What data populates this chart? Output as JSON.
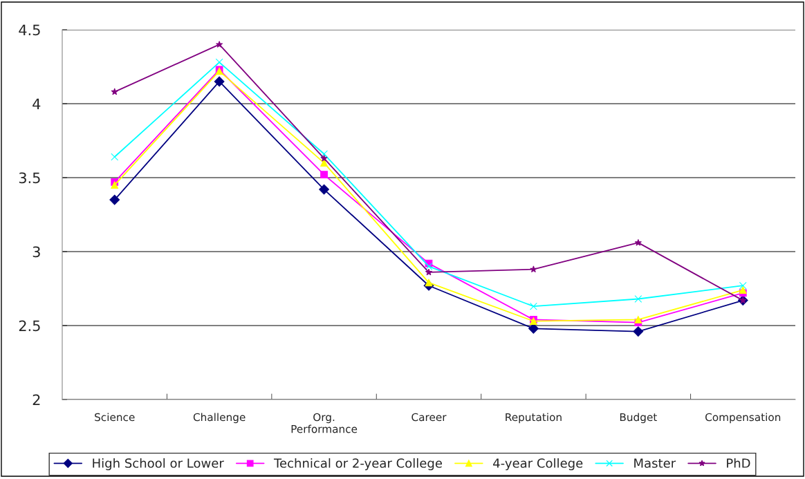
{
  "chart_data": {
    "type": "line",
    "categories": [
      "Science",
      "Challenge",
      "Org.\nPerformance",
      "Career",
      "Reputation",
      "Budget",
      "Compensation"
    ],
    "series": [
      {
        "name": "High School or Lower",
        "color": "#000080",
        "marker": "diamond",
        "values": [
          3.35,
          4.15,
          3.42,
          2.77,
          2.48,
          2.46,
          2.67
        ]
      },
      {
        "name": "Technical or 2-year College",
        "color": "#ff00ff",
        "marker": "square",
        "values": [
          3.47,
          4.23,
          3.52,
          2.92,
          2.54,
          2.52,
          2.72
        ]
      },
      {
        "name": "4-year College",
        "color": "#ffff00",
        "marker": "triangle",
        "values": [
          3.45,
          4.22,
          3.6,
          2.79,
          2.53,
          2.54,
          2.74
        ]
      },
      {
        "name": "Master",
        "color": "#00ffff",
        "marker": "cross",
        "values": [
          3.64,
          4.28,
          3.66,
          2.9,
          2.63,
          2.68,
          2.77
        ]
      },
      {
        "name": "PhD",
        "color": "#800080",
        "marker": "star",
        "values": [
          4.08,
          4.4,
          3.63,
          2.86,
          2.88,
          3.06,
          2.67
        ]
      }
    ],
    "ylim": [
      2,
      4.5
    ],
    "yticks": [
      2,
      2.5,
      3,
      3.5,
      4,
      4.5
    ],
    "grid": "y",
    "legend": "bottom",
    "line_style": "solid"
  }
}
